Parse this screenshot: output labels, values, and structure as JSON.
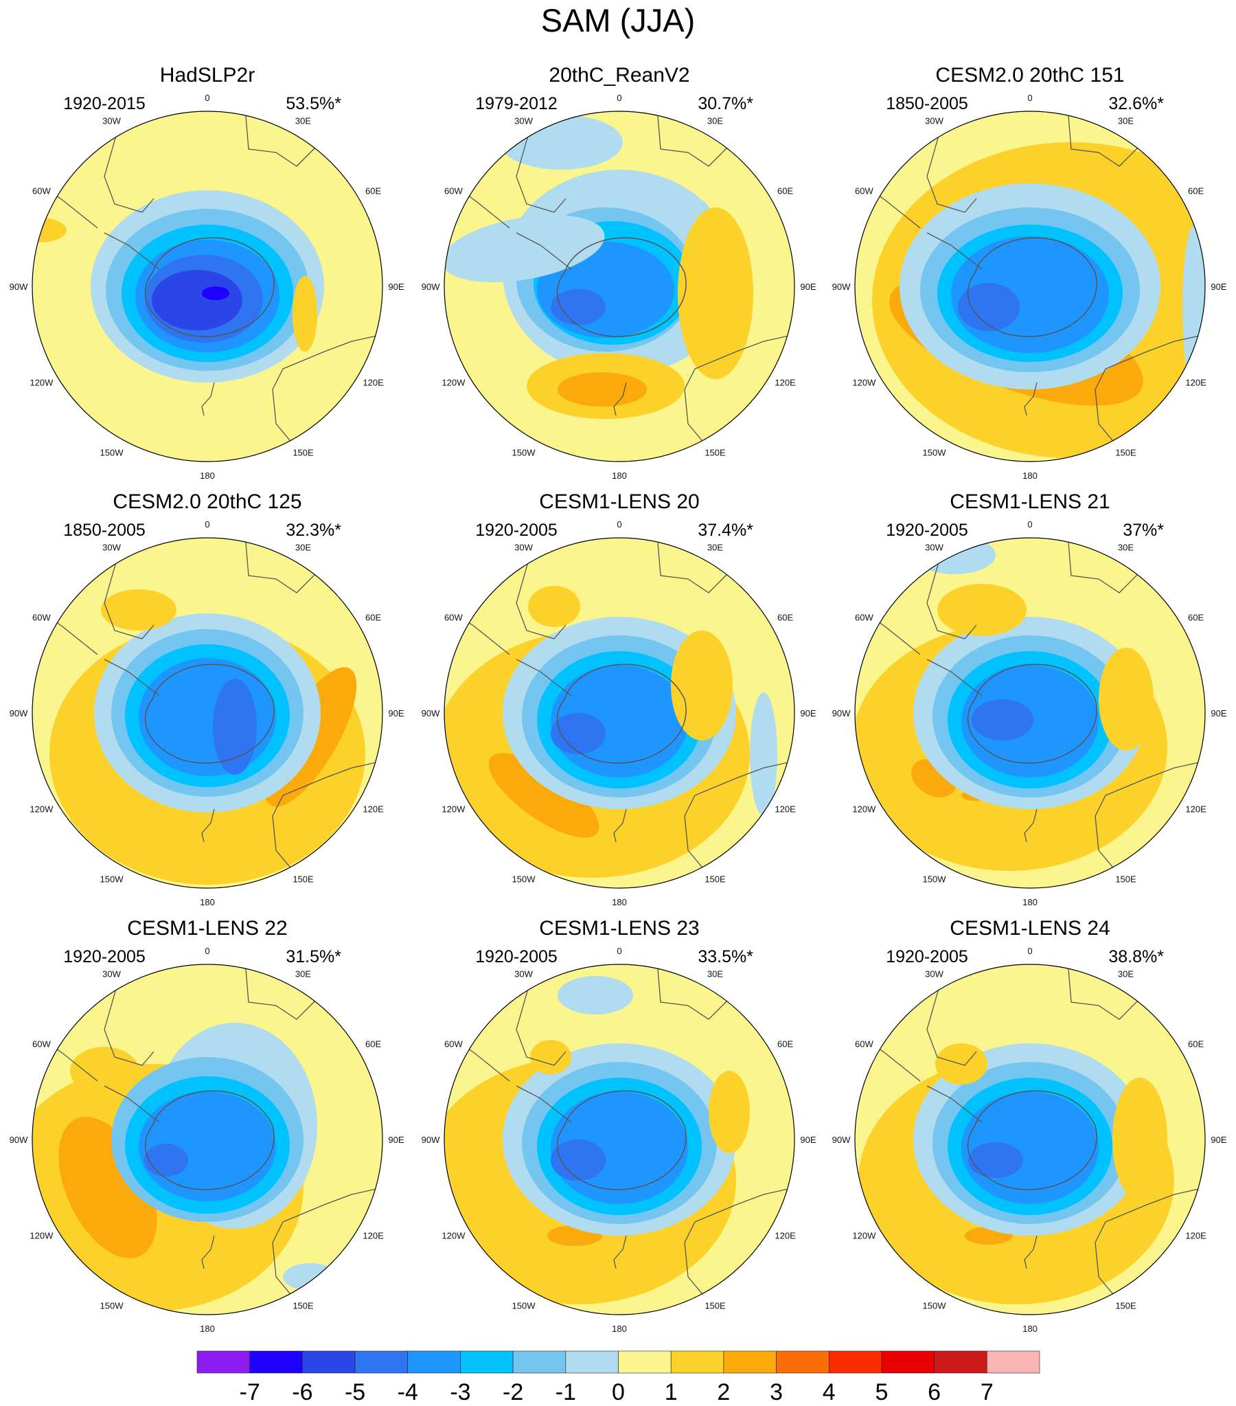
{
  "figure": {
    "title": "SAM (JJA)"
  },
  "panels": [
    {
      "title": "HadSLP2r",
      "period": "1920-2015",
      "variance": "53.5%*"
    },
    {
      "title": "20thC_ReanV2",
      "period": "1979-2012",
      "variance": "30.7%*"
    },
    {
      "title": "CESM2.0 20thC 151",
      "period": "1850-2005",
      "variance": "32.6%*"
    },
    {
      "title": "CESM2.0 20thC 125",
      "period": "1850-2005",
      "variance": "32.3%*"
    },
    {
      "title": "CESM1-LENS 20",
      "period": "1920-2005",
      "variance": "37.4%*"
    },
    {
      "title": "CESM1-LENS 21",
      "period": "1920-2005",
      "variance": "37%*"
    },
    {
      "title": "CESM1-LENS 22",
      "period": "1920-2005",
      "variance": "31.5%*"
    },
    {
      "title": "CESM1-LENS 23",
      "period": "1920-2005",
      "variance": "33.5%*"
    },
    {
      "title": "CESM1-LENS 24",
      "period": "1920-2005",
      "variance": "38.8%*"
    }
  ],
  "longitude_labels": [
    "0",
    "30E",
    "60E",
    "90E",
    "120E",
    "150E",
    "180",
    "150W",
    "120W",
    "90W",
    "60W",
    "30W"
  ],
  "colorbar": {
    "tick_labels": [
      "-7",
      "-6",
      "-5",
      "-4",
      "-3",
      "-2",
      "-1",
      "0",
      "1",
      "2",
      "3",
      "4",
      "5",
      "6",
      "7"
    ],
    "colors": [
      "#8c1cf0",
      "#1e00ff",
      "#2a46e6",
      "#2f74f0",
      "#1f96ff",
      "#00c2ff",
      "#74c6f0",
      "#b1dcf0",
      "#fbf58e",
      "#fcd22a",
      "#fca90b",
      "#fb6e06",
      "#fa2d00",
      "#e80000",
      "#cc1a1a",
      "#fbb4b4"
    ]
  }
}
